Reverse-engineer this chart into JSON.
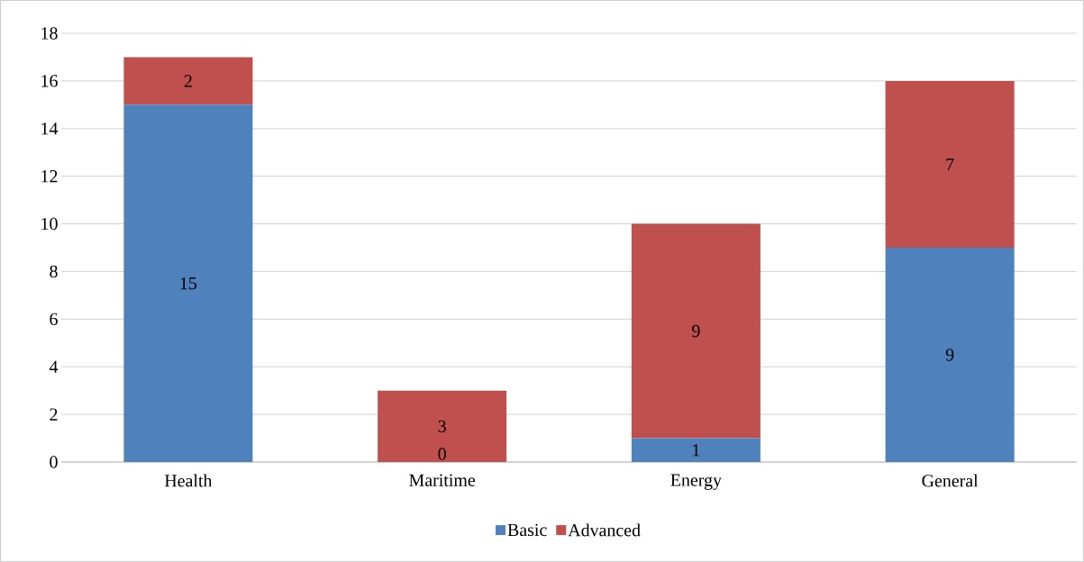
{
  "chart_data": {
    "type": "bar",
    "stacked": true,
    "categories": [
      "Health",
      "Maritime",
      "Energy",
      "General"
    ],
    "series": [
      {
        "name": "Basic",
        "color": "#4f81bd",
        "values": [
          15,
          0,
          1,
          9
        ]
      },
      {
        "name": "Advanced",
        "color": "#c0504d",
        "values": [
          2,
          3,
          9,
          7
        ]
      }
    ],
    "ylim": [
      0,
      18
    ],
    "yticks": [
      0,
      2,
      4,
      6,
      8,
      10,
      12,
      14,
      16,
      18
    ],
    "grid": "y",
    "legend": "bottom",
    "data_labels": true
  }
}
